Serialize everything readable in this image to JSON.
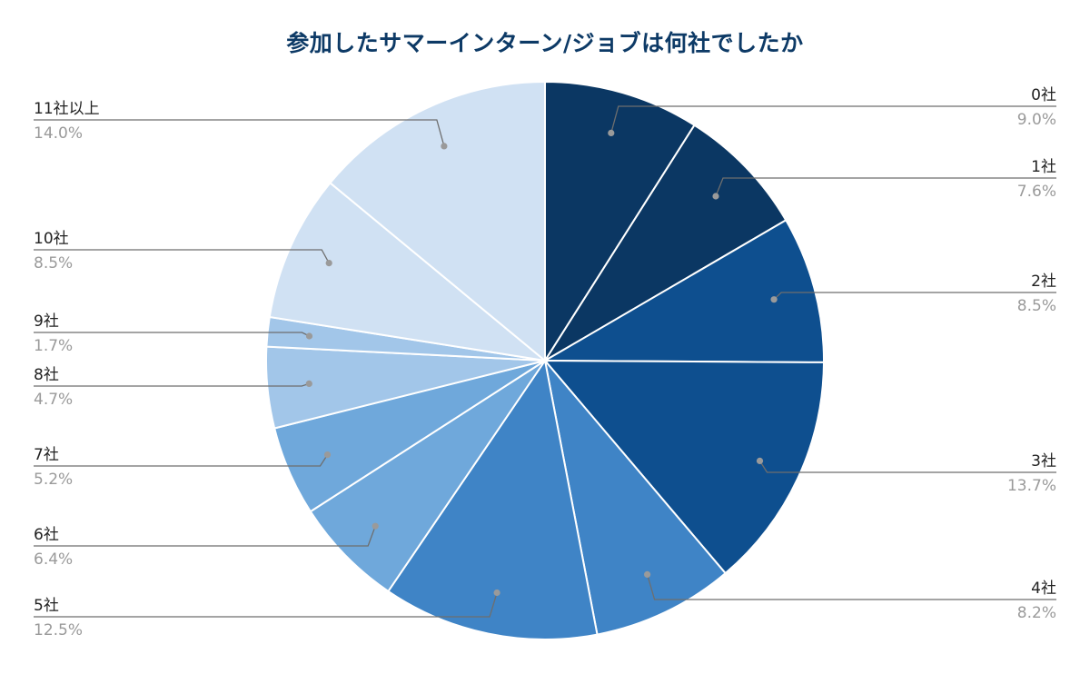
{
  "chart_data": {
    "type": "pie",
    "title": "参加したサマーインターン/ジョブは何社でしたか",
    "categories": [
      "0社",
      "1社",
      "2社",
      "3社",
      "4社",
      "5社",
      "6社",
      "7社",
      "8社",
      "9社",
      "10社",
      "11社以上"
    ],
    "values": [
      9.0,
      7.6,
      8.5,
      13.7,
      8.2,
      12.5,
      6.4,
      5.2,
      4.7,
      1.7,
      8.5,
      14.0
    ],
    "value_labels": [
      "9.0%",
      "7.6%",
      "8.5%",
      "13.7%",
      "8.2%",
      "12.5%",
      "6.4%",
      "5.2%",
      "4.7%",
      "1.7%",
      "8.5%",
      "14.0%"
    ],
    "unit": "%",
    "start_angle": "12 o'clock",
    "direction": "clockwise",
    "colors": [
      "#0b3763",
      "#0b3763",
      "#0e4f8f",
      "#0e4f8f",
      "#3f84c6",
      "#3f84c6",
      "#6fa8db",
      "#6fa8db",
      "#a2c6e9",
      "#a2c6e9",
      "#d0e1f3",
      "#d0e1f3"
    ],
    "label_colors": {
      "name": "#222222",
      "percent": "#9a9a9a",
      "leader": "#6e6e6e",
      "dot": "#9a9a9a"
    },
    "slice_border_color": "#ffffff",
    "legend": "none"
  }
}
